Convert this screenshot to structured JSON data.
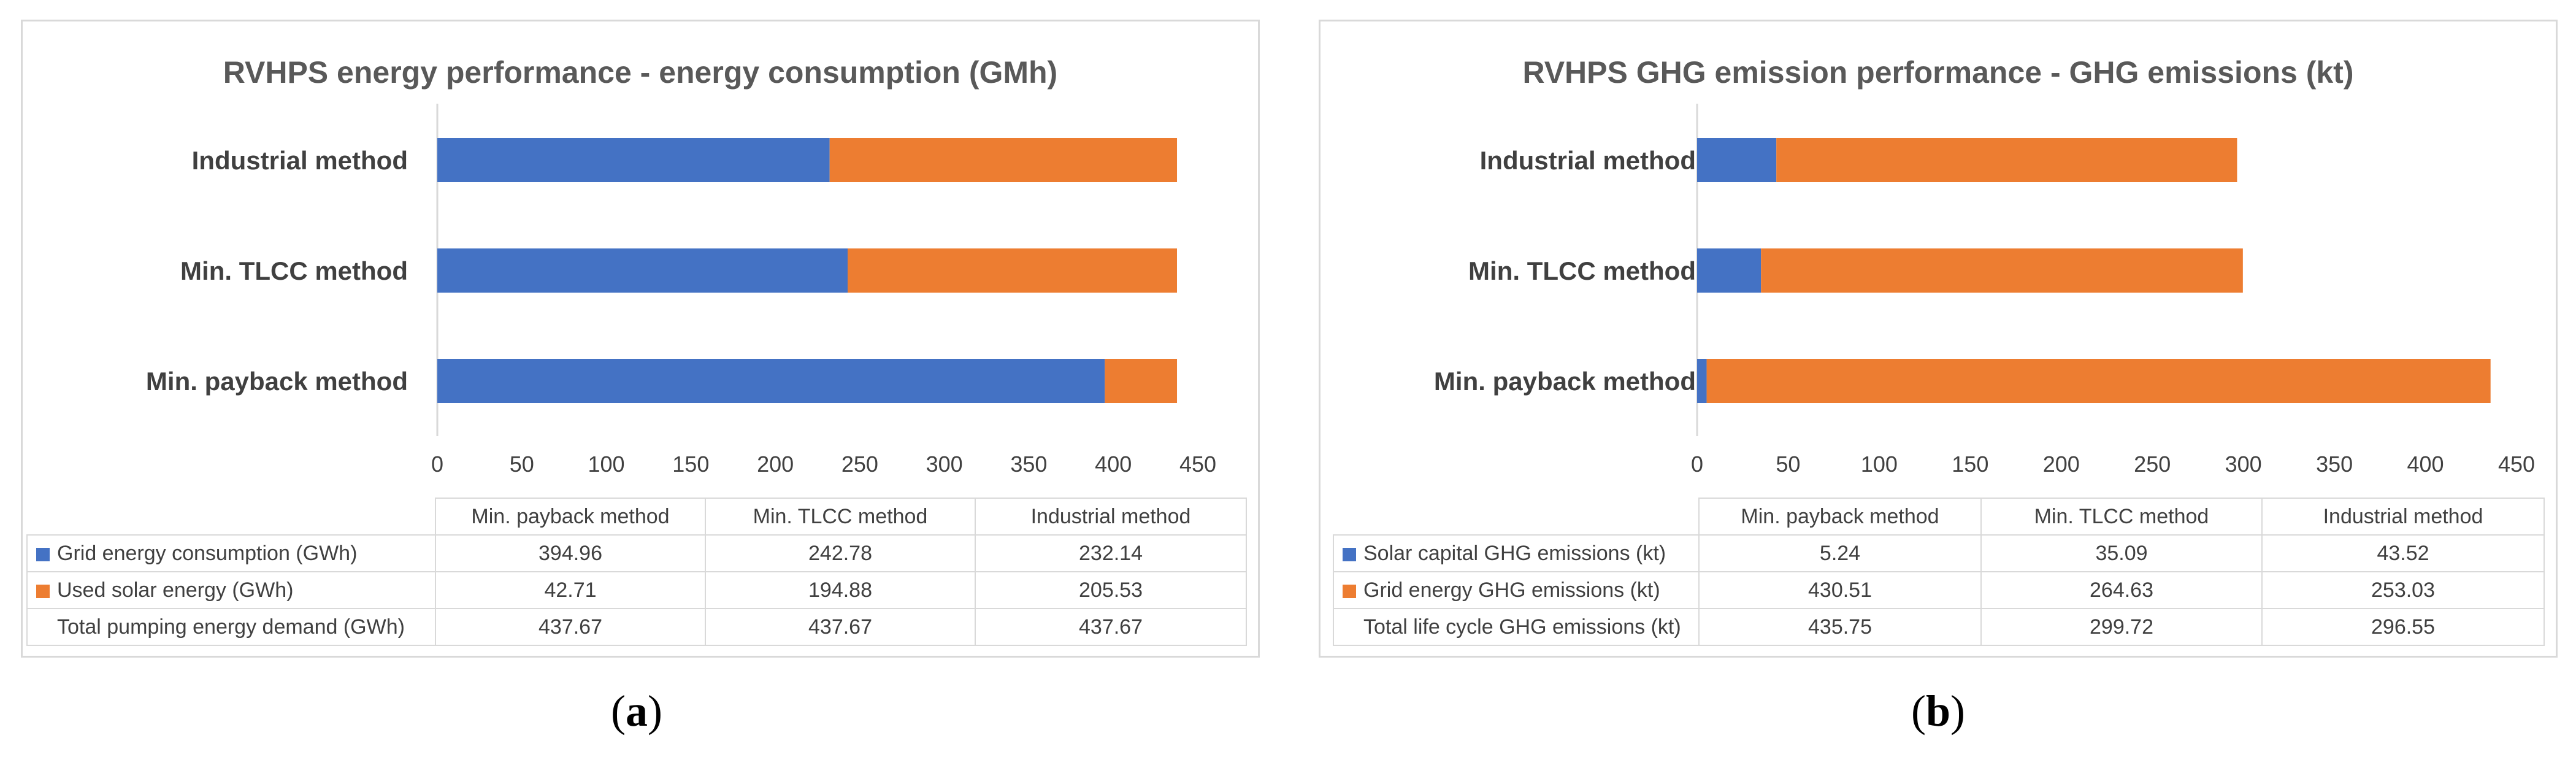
{
  "colors": {
    "blue": "#4472c4",
    "orange": "#ed7d31",
    "grid": "#d9d9d9"
  },
  "chart_data": [
    {
      "type": "bar",
      "orientation": "horizontal",
      "stacked": true,
      "title": "RVHPS energy performance - energy consumption (GMh)",
      "categories": [
        "Industrial method",
        "Min. TLCC method",
        "Min. payback method"
      ],
      "series": [
        {
          "name": "Grid energy consumption (GWh)",
          "color": "#4472c4",
          "values": [
            232.14,
            242.78,
            394.96
          ]
        },
        {
          "name": "Used solar energy (GWh)",
          "color": "#ed7d31",
          "values": [
            205.53,
            194.88,
            42.71
          ]
        }
      ],
      "xlim": [
        0,
        450
      ],
      "xticks": [
        0,
        50,
        100,
        150,
        200,
        250,
        300,
        350,
        400,
        450
      ],
      "table": {
        "columns": [
          "Min. payback method",
          "Min. TLCC method",
          "Industrial method"
        ],
        "rows": [
          {
            "label": "Grid energy consumption (GWh)",
            "swatch": "blue",
            "values": [
              "394.96",
              "242.78",
              "232.14"
            ]
          },
          {
            "label": "Used solar energy (GWh)",
            "swatch": "orange",
            "values": [
              "42.71",
              "194.88",
              "205.53"
            ]
          },
          {
            "label": "Total pumping energy demand (GWh)",
            "swatch": "none",
            "values": [
              "437.67",
              "437.67",
              "437.67"
            ]
          }
        ]
      },
      "caption_letter": "a"
    },
    {
      "type": "bar",
      "orientation": "horizontal",
      "stacked": true,
      "title": "RVHPS GHG emission performance - GHG emissions (kt)",
      "categories": [
        "Industrial method",
        "Min. TLCC method",
        "Min. payback method"
      ],
      "series": [
        {
          "name": "Solar capital GHG emissions (kt)",
          "color": "#4472c4",
          "values": [
            43.52,
            35.09,
            5.24
          ]
        },
        {
          "name": "Grid energy GHG emissions (kt)",
          "color": "#ed7d31",
          "values": [
            253.03,
            264.63,
            430.51
          ]
        }
      ],
      "xlim": [
        0,
        450
      ],
      "xticks": [
        0,
        50,
        100,
        150,
        200,
        250,
        300,
        350,
        400,
        450
      ],
      "table": {
        "columns": [
          "Min. payback method",
          "Min. TLCC method",
          "Industrial method"
        ],
        "rows": [
          {
            "label": "Solar capital GHG emissions (kt)",
            "swatch": "blue",
            "values": [
              "5.24",
              "35.09",
              "43.52"
            ]
          },
          {
            "label": "Grid energy GHG emissions (kt)",
            "swatch": "orange",
            "values": [
              "430.51",
              "264.63",
              "253.03"
            ]
          },
          {
            "label": "Total life cycle GHG emissions (kt)",
            "swatch": "none",
            "values": [
              "435.75",
              "299.72",
              "296.55"
            ]
          }
        ]
      },
      "caption_letter": "b"
    }
  ]
}
